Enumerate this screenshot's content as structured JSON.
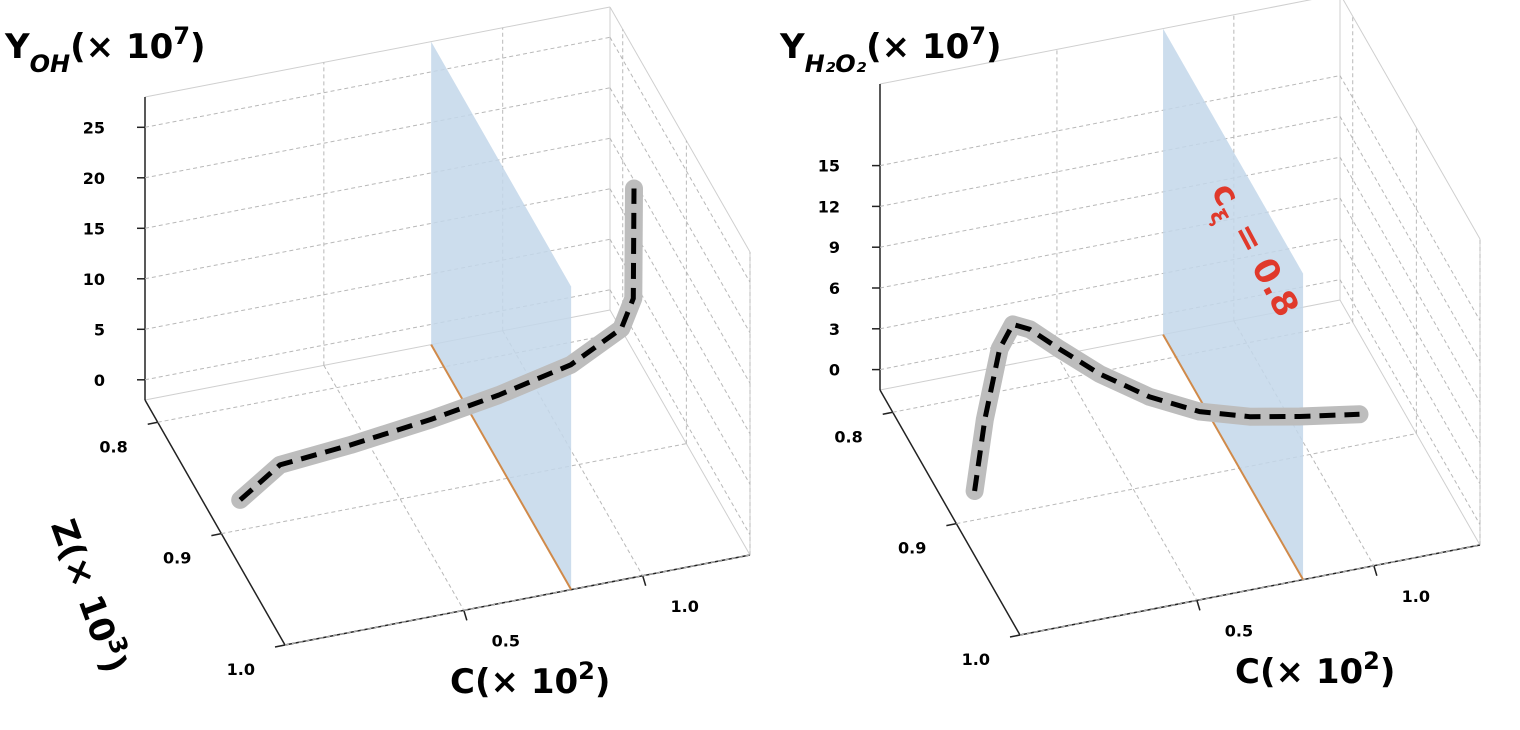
{
  "chart_data": [
    {
      "type": "line3d",
      "zlabel": {
        "symbol": "Y",
        "sub": "OH",
        "scale": "(× 10",
        "exp": "7",
        "close": ")"
      },
      "ylabel": {
        "symbol": "Z",
        "scale": "(× 10",
        "exp": "3",
        "close": ")"
      },
      "xlabel": {
        "symbol": "C",
        "scale": "(× 10",
        "exp": "2",
        "close": ")"
      },
      "xlim": [
        0,
        1.3
      ],
      "xticks": [
        0.5,
        {
          "value": 1,
          "label": "1.0"
        }
      ],
      "ylim": [
        0.78,
        1.0
      ],
      "yticks": [
        0.8,
        0.9,
        {
          "value": 1,
          "label": "1.0"
        }
      ],
      "zlim": [
        -2,
        28
      ],
      "zticks": [
        0,
        5,
        10,
        15,
        20,
        25
      ],
      "grid": true,
      "plane": {
        "x": 0.8,
        "color": "#c3d7ea",
        "edge_color": "#d08a4a"
      },
      "series": [
        {
          "color": "#000000",
          "band_color": "#bdbdbd",
          "x": [
            0.067,
            0.21,
            0.41,
            0.64,
            0.84,
            1.05,
            1.2,
            1.23,
            1.23
          ],
          "y": [
            0.892,
            0.874,
            0.873,
            0.869,
            0.864,
            0.859,
            0.854,
            0.856,
            0.857
          ],
          "z": [
            0,
            0.5,
            1,
            1.5,
            2,
            3,
            5,
            8,
            19
          ]
        }
      ]
    },
    {
      "type": "line3d",
      "zlabel": {
        "symbol": "Y",
        "sub": "H₂O₂",
        "scale": "(× 10",
        "exp": "7",
        "close": ")"
      },
      "xlabel": {
        "symbol": "C",
        "scale": "(× 10",
        "exp": "2",
        "close": ")"
      },
      "annotation": {
        "text": "c",
        "sub": "ξ",
        "rest": " = 0.8",
        "color": "#e0392b"
      },
      "xlim": [
        0,
        1.3
      ],
      "xticks": [
        0.5,
        {
          "value": 1,
          "label": "1.0"
        }
      ],
      "ylim": [
        0.78,
        1.0
      ],
      "yticks": [
        0.8,
        0.9,
        {
          "value": 1,
          "label": "1.0"
        }
      ],
      "zlim": [
        -1.5,
        21
      ],
      "zticks": [
        0,
        3,
        6,
        9,
        12,
        15
      ],
      "grid": true,
      "plane": {
        "x": 0.8,
        "color": "#c3d7ea",
        "edge_color": "#d08a4a"
      },
      "series": [
        {
          "color": "#000000",
          "band_color": "#bdbdbd",
          "x": [
            0.064,
            0.093,
            0.135,
            0.172,
            0.22,
            0.305,
            0.418,
            0.559,
            0.7,
            0.842,
            0.983,
            1.152
          ],
          "y": [
            0.893,
            0.893,
            0.893,
            0.893,
            0.893,
            0.893,
            0.893,
            0.893,
            0.893,
            0.893,
            0.893,
            0.893
          ],
          "z": [
            0,
            5.1,
            10.1,
            11.7,
            11.1,
            9.2,
            6.8,
            4.4,
            2.6,
            1.5,
            0.8,
            0.1
          ]
        }
      ]
    }
  ]
}
